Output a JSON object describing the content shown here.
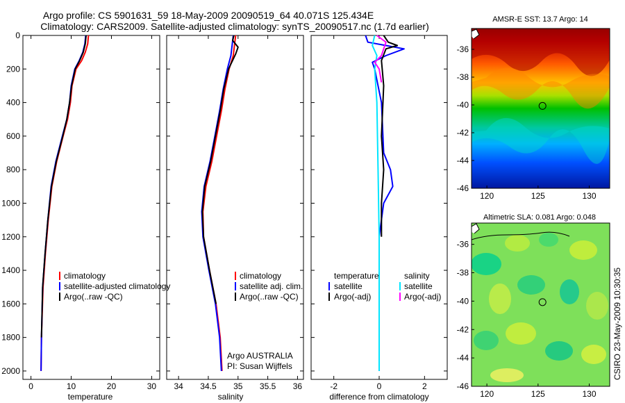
{
  "header": {
    "title_line1": "Argo profile: CS 5901631_59 18-May-2009 20090519_64 40.071S 125.434E",
    "title_line2": "Climatology: CARS2009. Satellite-adjusted climatology: synTS_20090517.nc (1.7d earlier)"
  },
  "credit": "CSIRO 23-May-2009 10:30:35",
  "info": {
    "line1": "Argo AUSTRALIA",
    "line2": "PI: Susan Wijffels"
  },
  "colors": {
    "climatology": "#ff0000",
    "satellite": "#0000ff",
    "argo": "#000000",
    "sal_satellite": "#00e5ff",
    "sal_argo": "#ff00ff"
  },
  "chart_data": [
    {
      "type": "line",
      "name": "temperature-panel",
      "xlabel": "temperature",
      "xlim": [
        -2,
        32
      ],
      "ylim": [
        2050,
        0
      ],
      "xticks": [
        "0",
        "10",
        "20",
        "30"
      ],
      "xtick_values": [
        0,
        10,
        20,
        30
      ],
      "yticks": [
        "0",
        "200",
        "400",
        "600",
        "800",
        "1000",
        "1200",
        "1400",
        "1600",
        "1800",
        "2000"
      ],
      "ytick_values": [
        0,
        200,
        400,
        600,
        800,
        1000,
        1200,
        1400,
        1600,
        1800,
        2000
      ],
      "legend": [
        "climatology",
        "satellite-adjusted climatology",
        "Argo(..raw -QC)"
      ],
      "series": [
        {
          "color": "#ff0000",
          "x": [
            14.3,
            14.1,
            13.5,
            12.6,
            11.2,
            10.2,
            9.8,
            9.1,
            8.0,
            6.4,
            5.2,
            4.3,
            3.6,
            3.0,
            2.6,
            2.5
          ],
          "y": [
            0,
            50,
            100,
            150,
            200,
            300,
            400,
            500,
            600,
            750,
            900,
            1100,
            1300,
            1500,
            1800,
            2000
          ]
        },
        {
          "color": "#0000ff",
          "x": [
            13.6,
            13.4,
            12.9,
            12.0,
            10.9,
            10.0,
            9.6,
            8.9,
            7.8,
            6.2,
            5.0,
            4.2,
            3.5,
            2.9,
            2.6,
            2.5
          ],
          "y": [
            0,
            50,
            100,
            150,
            200,
            300,
            400,
            500,
            600,
            750,
            900,
            1100,
            1300,
            1500,
            1800,
            2000
          ]
        },
        {
          "color": "#000000",
          "x": [
            13.7,
            13.5,
            13.0,
            12.1,
            11.0,
            10.1,
            9.6,
            8.9,
            7.9,
            6.3,
            5.1,
            4.2,
            3.5,
            2.9,
            2.6
          ],
          "y": [
            0,
            50,
            100,
            150,
            200,
            300,
            400,
            500,
            600,
            750,
            900,
            1100,
            1300,
            1500,
            1800
          ]
        }
      ]
    },
    {
      "type": "line",
      "name": "salinity-panel",
      "xlabel": "salinity",
      "xlim": [
        33.8,
        36.1
      ],
      "ylim": [
        2050,
        0
      ],
      "xticks": [
        "34",
        "34.5",
        "35",
        "35.5",
        "36"
      ],
      "xtick_values": [
        34,
        34.5,
        35,
        35.5,
        36
      ],
      "legend": [
        "climatology",
        "satellite adj. clim.",
        "Argo(..raw -QC)"
      ],
      "series": [
        {
          "color": "#ff0000",
          "x": [
            34.96,
            34.94,
            34.92,
            34.85,
            34.78,
            34.72,
            34.64,
            34.56,
            34.46,
            34.41,
            34.42,
            34.52,
            34.63,
            34.7,
            34.73
          ],
          "y": [
            0,
            60,
            120,
            200,
            320,
            450,
            600,
            750,
            900,
            1050,
            1200,
            1400,
            1600,
            1800,
            2000
          ]
        },
        {
          "color": "#0000ff",
          "x": [
            34.92,
            34.9,
            34.88,
            34.82,
            34.75,
            34.69,
            34.61,
            34.53,
            34.43,
            34.39,
            34.41,
            34.51,
            34.62,
            34.69,
            34.72
          ],
          "y": [
            0,
            60,
            120,
            200,
            320,
            450,
            600,
            750,
            900,
            1050,
            1200,
            1400,
            1600,
            1800,
            2000
          ]
        },
        {
          "color": "#000000",
          "x": [
            34.93,
            34.91,
            35.0,
            34.96,
            34.84,
            34.76,
            34.7,
            34.62,
            34.54,
            34.44,
            34.4,
            34.42,
            34.52,
            34.63
          ],
          "y": [
            0,
            30,
            70,
            110,
            200,
            320,
            450,
            600,
            750,
            900,
            1050,
            1200,
            1400,
            1600
          ]
        }
      ]
    },
    {
      "type": "line",
      "name": "difference-panel",
      "xlabel": "difference from climatology",
      "xlim": [
        -3,
        3
      ],
      "ylim": [
        2050,
        0
      ],
      "xticks": [
        "-2",
        "0",
        "2"
      ],
      "xtick_values": [
        -2,
        0,
        2
      ],
      "legend_left": [
        "temperature",
        "satellite",
        "Argo(-adj)"
      ],
      "legend_right": [
        "salinity",
        "satellite",
        "Argo(-adj)"
      ],
      "series": [
        {
          "color": "#0000ff",
          "x": [
            -0.6,
            -0.5,
            0.3,
            1.1,
            0.3,
            -0.3,
            -0.2,
            0.1,
            0.2,
            0.5,
            0.6,
            0.2,
            0.0,
            0.0,
            0.0
          ],
          "y": [
            0,
            40,
            60,
            80,
            120,
            160,
            200,
            400,
            700,
            800,
            900,
            1000,
            1200,
            1600,
            2000
          ]
        },
        {
          "color": "#000000",
          "x": [
            0.2,
            0.4,
            0.8,
            0.3,
            0.1,
            0.2,
            0.1,
            0.2,
            0.1,
            0.1,
            0.1
          ],
          "y": [
            0,
            40,
            60,
            80,
            150,
            300,
            600,
            800,
            1000,
            1100,
            1200
          ]
        },
        {
          "color": "#00e5ff",
          "x": [
            -0.2,
            -0.3,
            -0.1,
            -0.2,
            -0.1,
            -0.05,
            0.0,
            0.0,
            0.0
          ],
          "y": [
            0,
            60,
            120,
            200,
            400,
            800,
            1200,
            1600,
            2000
          ]
        },
        {
          "color": "#ff00ff",
          "x": [
            -0.1,
            0.3,
            0.2,
            0.1,
            -0.2,
            0.0,
            0.1
          ],
          "y": [
            0,
            40,
            80,
            120,
            160,
            200,
            280
          ]
        }
      ]
    },
    {
      "type": "heatmap",
      "name": "sst-map",
      "title": "AMSR-E SST: 13.7 Argo: 14",
      "xlim": [
        118.5,
        132
      ],
      "ylim": [
        -46,
        -34.5
      ],
      "xticks": [
        "120",
        "125",
        "130"
      ],
      "xtick_values": [
        120,
        125,
        130
      ],
      "yticks": [
        "-36",
        "-38",
        "-40",
        "-42",
        "-44",
        "-46"
      ],
      "ytick_values": [
        -36,
        -38,
        -40,
        -42,
        -44,
        -46
      ],
      "marker": {
        "lon": 125.434,
        "lat": -40.071
      }
    },
    {
      "type": "heatmap",
      "name": "sla-map",
      "title": "Altimetric SLA: 0.081 Argo: 0.048",
      "xlim": [
        118.5,
        132
      ],
      "ylim": [
        -46,
        -34.5
      ],
      "xticks": [
        "120",
        "125",
        "130"
      ],
      "xtick_values": [
        120,
        125,
        130
      ],
      "yticks": [
        "-36",
        "-38",
        "-40",
        "-42",
        "-44",
        "-46"
      ],
      "ytick_values": [
        -36,
        -38,
        -40,
        -42,
        -44,
        -46
      ],
      "marker": {
        "lon": 125.434,
        "lat": -40.071
      }
    }
  ]
}
